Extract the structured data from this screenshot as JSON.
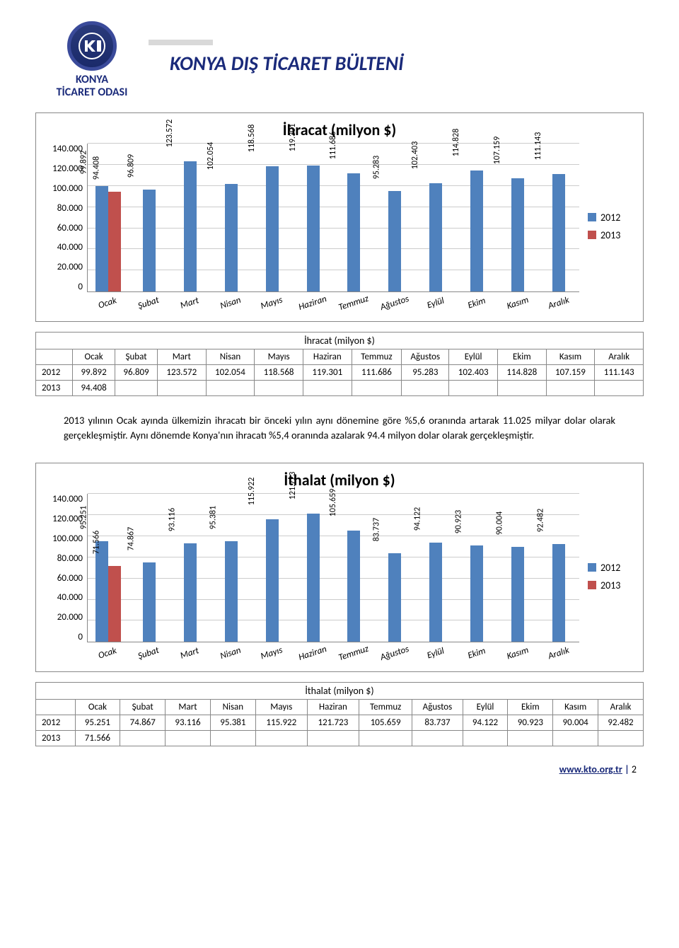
{
  "header": {
    "logo_line1": "KONYA",
    "logo_line2": "TİCARET ODASI",
    "title": "KONYA DIŞ TİCARET BÜLTENİ"
  },
  "months": [
    "Ocak",
    "Şubat",
    "Mart",
    "Nisan",
    "Mayıs",
    "Haziran",
    "Temmuz",
    "Ağustos",
    "Eylül",
    "Ekim",
    "Kasım",
    "Aralık"
  ],
  "chart_common": {
    "ylabels": [
      "0",
      "20.000",
      "40.000",
      "60.000",
      "80.000",
      "100.000",
      "120.000",
      "140.000"
    ],
    "ymax": 140,
    "color_2012": "#4f81bd",
    "color_2013": "#c0504d",
    "grid_color": "#cccccc",
    "legend": [
      {
        "label": "2012",
        "color": "#4f81bd"
      },
      {
        "label": "2013",
        "color": "#c0504d"
      }
    ]
  },
  "chart1": {
    "title": "İhracat (milyon $)",
    "series_2012": [
      99.892,
      96.809,
      123.572,
      102.054,
      118.568,
      119.301,
      111.686,
      95.283,
      102.403,
      114.828,
      107.159,
      111.143
    ],
    "series_2013": [
      94.408,
      null,
      null,
      null,
      null,
      null,
      null,
      null,
      null,
      null,
      null,
      null
    ],
    "labels_2012": [
      "99.892",
      "96.809",
      "123.572",
      "102.054",
      "118.568",
      "119.301",
      "111.686",
      "95.283",
      "102.403",
      "114.828",
      "107.159",
      "111.143"
    ],
    "labels_2013": [
      "94.408",
      "",
      "",
      "",
      "",
      "",
      "",
      "",
      "",
      "",
      "",
      ""
    ]
  },
  "table1": {
    "caption": "İhracat (milyon $)",
    "rows": [
      {
        "year": "2012",
        "cells": [
          "99.892",
          "96.809",
          "123.572",
          "102.054",
          "118.568",
          "119.301",
          "111.686",
          "95.283",
          "102.403",
          "114.828",
          "107.159",
          "111.143"
        ]
      },
      {
        "year": "2013",
        "cells": [
          "94.408",
          "",
          "",
          "",
          "",
          "",
          "",
          "",
          "",
          "",
          "",
          ""
        ]
      }
    ]
  },
  "body_text": "2013 yılının Ocak ayında ülkemizin ihracatı bir önceki yılın aynı dönemine göre %5,6 oranında artarak 11.025 milyar dolar olarak gerçekleşmiştir. Aynı dönemde Konya'nın ihracatı %5,4 oranında azalarak 94.4 milyon dolar olarak gerçekleşmiştir.",
  "chart2": {
    "title": "İthalat (milyon $)",
    "series_2012": [
      95.251,
      74.867,
      93.116,
      95.381,
      115.922,
      121.723,
      105.659,
      83.737,
      94.122,
      90.923,
      90.004,
      92.482
    ],
    "series_2013": [
      71.566,
      null,
      null,
      null,
      null,
      null,
      null,
      null,
      null,
      null,
      null,
      null
    ],
    "labels_2012": [
      "95.251",
      "74.867",
      "93.116",
      "95.381",
      "115.922",
      "121.723",
      "105.659",
      "83.737",
      "94.122",
      "90.923",
      "90.004",
      "92.482"
    ],
    "labels_2013": [
      "71.566",
      "",
      "",
      "",
      "",
      "",
      "",
      "",
      "",
      "",
      "",
      ""
    ]
  },
  "table2": {
    "caption": "İthalat (milyon $)",
    "rows": [
      {
        "year": "2012",
        "cells": [
          "95.251",
          "74.867",
          "93.116",
          "95.381",
          "115.922",
          "121.723",
          "105.659",
          "83.737",
          "94.122",
          "90.923",
          "90.004",
          "92.482"
        ]
      },
      {
        "year": "2013",
        "cells": [
          "71.566",
          "",
          "",
          "",
          "",
          "",
          "",
          "",
          "",
          "",
          "",
          ""
        ]
      }
    ]
  },
  "footer": {
    "url": "www.kto.org.tr",
    "page": "2"
  }
}
